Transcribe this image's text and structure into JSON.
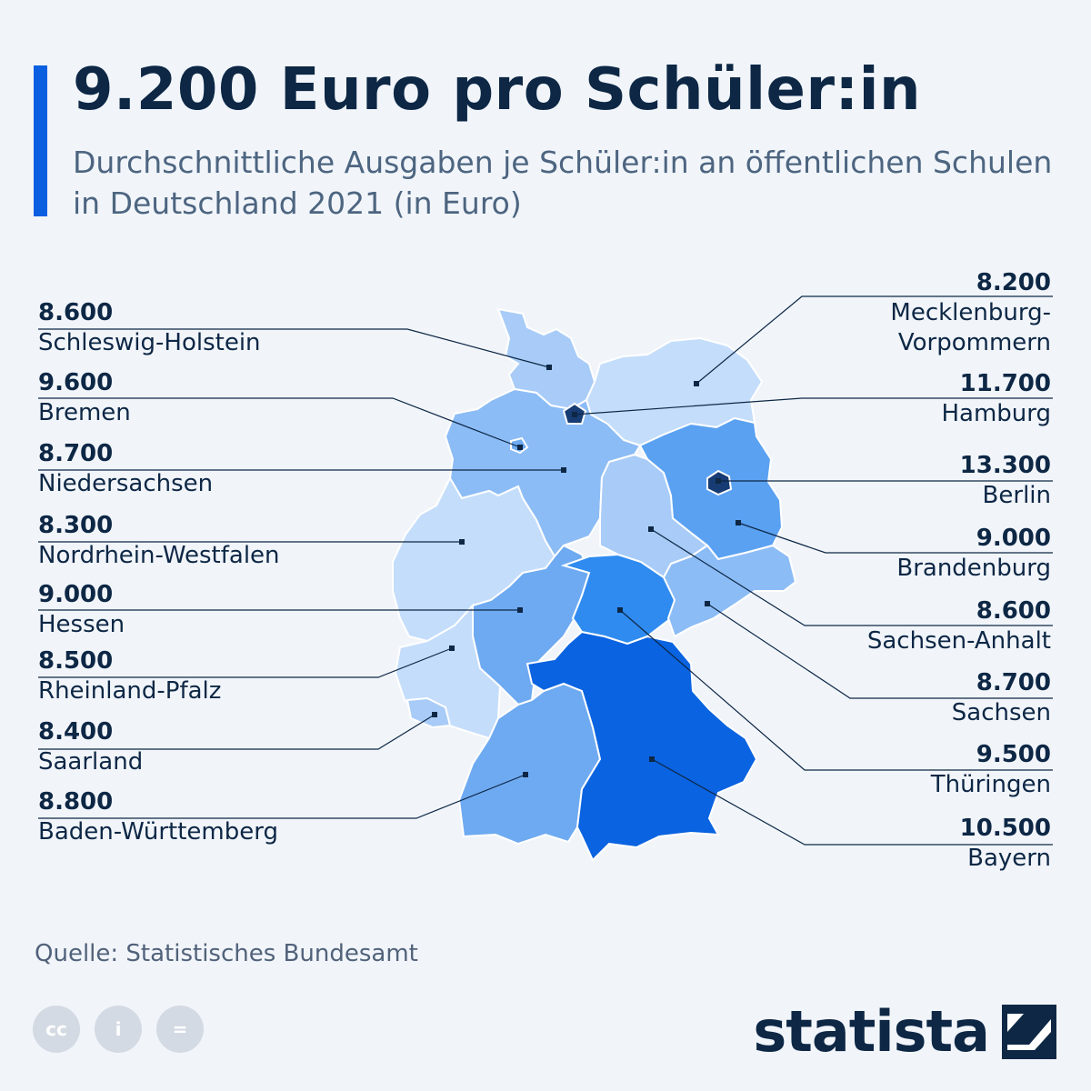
{
  "title": "9.200 Euro pro Schüler:in",
  "subtitle": "Durchschnittliche Ausgaben je Schüler:in an öffentlichen Schulen in Deutschland 2021 (in Euro)",
  "colors": {
    "accent": "#0a5fe0",
    "text": "#0d2745",
    "shades": [
      "#c4ddfb",
      "#a8ccf7",
      "#8cbcf5",
      "#6eaaf1",
      "#5aa1f2",
      "#2f8bf0",
      "#0a63e0",
      "#173c73"
    ]
  },
  "states": {
    "schleswig_holstein": {
      "value": "8.600",
      "name": "Schleswig-Holstein"
    },
    "bremen": {
      "value": "9.600",
      "name": "Bremen"
    },
    "niedersachsen": {
      "value": "8.700",
      "name": "Niedersachsen"
    },
    "nrw": {
      "value": "8.300",
      "name": "Nordrhein-Westfalen"
    },
    "hessen": {
      "value": "9.000",
      "name": "Hessen"
    },
    "rheinland_pfalz": {
      "value": "8.500",
      "name": "Rheinland-Pfalz"
    },
    "saarland": {
      "value": "8.400",
      "name": "Saarland"
    },
    "baden_wuerttemberg": {
      "value": "8.800",
      "name": "Baden-Württemberg"
    },
    "mecklenburg_vorpommern": {
      "value": "8.200",
      "name": "Mecklenburg-Vorpommern"
    },
    "hamburg": {
      "value": "11.700",
      "name": "Hamburg"
    },
    "berlin": {
      "value": "13.300",
      "name": "Berlin"
    },
    "brandenburg": {
      "value": "9.000",
      "name": "Brandenburg"
    },
    "sachsen_anhalt": {
      "value": "8.600",
      "name": "Sachsen-Anhalt"
    },
    "sachsen": {
      "value": "8.700",
      "name": "Sachsen"
    },
    "thueringen": {
      "value": "9.500",
      "name": "Thüringen"
    },
    "bayern": {
      "value": "10.500",
      "name": "Bayern"
    }
  },
  "source": "Quelle: Statistisches Bundesamt",
  "license_icons": [
    "cc-icon",
    "attribution-icon",
    "no-derivatives-icon"
  ],
  "license_glyphs": [
    "cc",
    "i",
    "="
  ],
  "brand": "statista"
}
